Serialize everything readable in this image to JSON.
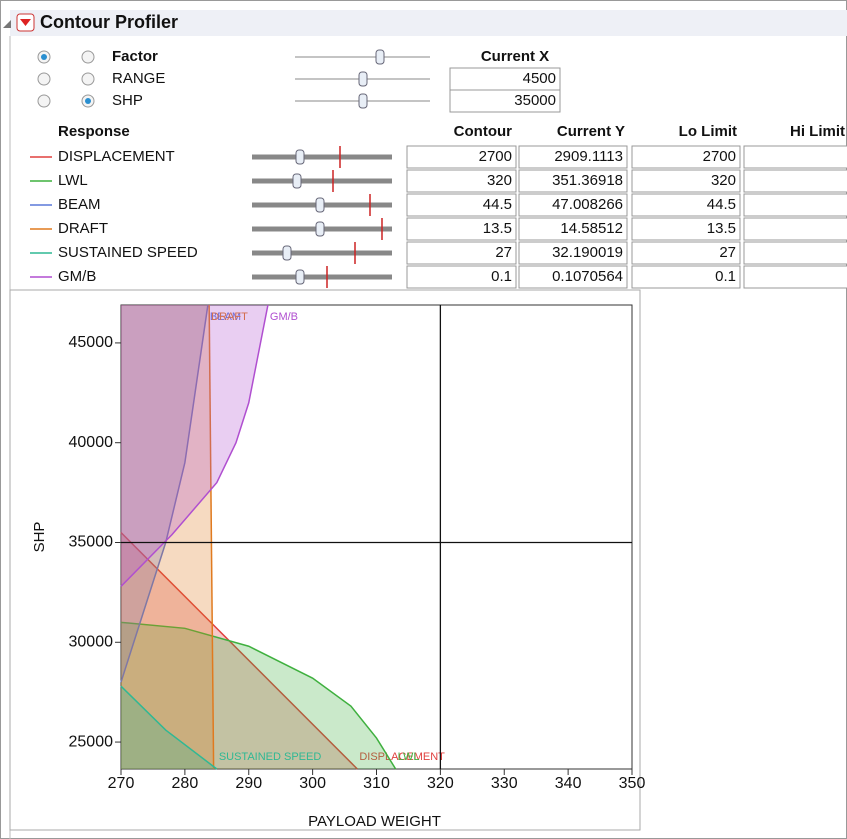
{
  "title": "Contour Profiler",
  "factors": {
    "header": "Factor",
    "current_header": "Current X",
    "rows": [
      {
        "name": "RANGE",
        "current_x": 4500
      },
      {
        "name": "SHP",
        "current_x": 35000
      }
    ]
  },
  "responses": {
    "headers": [
      "Response",
      "Contour",
      "Current Y",
      "Lo Limit",
      "Hi Limit"
    ],
    "rows": [
      {
        "name": "DISPLACEMENT",
        "color": "#e0403f",
        "contour": 2700,
        "current_y": 2909.1113,
        "lo_limit": 2700,
        "hi_limit": ".",
        "curve_x": [
          270,
          307
        ],
        "curve_y": [
          35500,
          23650
        ]
      },
      {
        "name": "LWL",
        "color": "#3fb03f",
        "contour": 320,
        "current_y": 351.36918,
        "lo_limit": 320,
        "hi_limit": ".",
        "curve_x": [
          270,
          280,
          290,
          300,
          306,
          310,
          313
        ],
        "curve_y": [
          31000,
          30700,
          29800,
          28200,
          26800,
          25200,
          23650
        ]
      },
      {
        "name": "BEAM",
        "color": "#5a78d8",
        "contour": 44.5,
        "current_y": 47.008266,
        "lo_limit": 44.5,
        "hi_limit": ".",
        "curve_x": [
          270,
          274,
          277,
          280,
          283.6
        ],
        "curve_y": [
          28000,
          32000,
          35000,
          39000,
          46900
        ]
      },
      {
        "name": "DRAFT",
        "color": "#e07a1f",
        "contour": 13.5,
        "current_y": 14.58512,
        "lo_limit": 13.5,
        "hi_limit": ".",
        "curve_x": [
          284.5,
          283.8
        ],
        "curve_y": [
          23650,
          46900
        ]
      },
      {
        "name": "SUSTAINED SPEED",
        "color": "#2fb894",
        "contour": 27,
        "current_y": 32.190019,
        "lo_limit": 27,
        "hi_limit": ".",
        "curve_x": [
          270,
          277,
          285
        ],
        "curve_y": [
          27800,
          25600,
          23650
        ]
      },
      {
        "name": "GM/B",
        "color": "#b04fd0",
        "contour": 0.1,
        "current_y": 0.1070564,
        "lo_limit": 0.1,
        "hi_limit": ".",
        "curve_x": [
          270,
          278,
          285,
          288,
          290,
          293
        ],
        "curve_y": [
          32800,
          35400,
          38000,
          40000,
          42000,
          46900
        ]
      }
    ]
  },
  "chart": {
    "xlabel": "PAYLOAD WEIGHT",
    "ylabel": "SHP",
    "xlim": [
      270,
      350
    ],
    "ylim": [
      23650,
      46900
    ],
    "xticks": [
      270,
      280,
      290,
      300,
      310,
      320,
      330,
      340,
      350
    ],
    "yticks": [
      25000,
      30000,
      35000,
      40000,
      45000
    ],
    "crosshair_x": 320,
    "crosshair_y": 35000
  }
}
